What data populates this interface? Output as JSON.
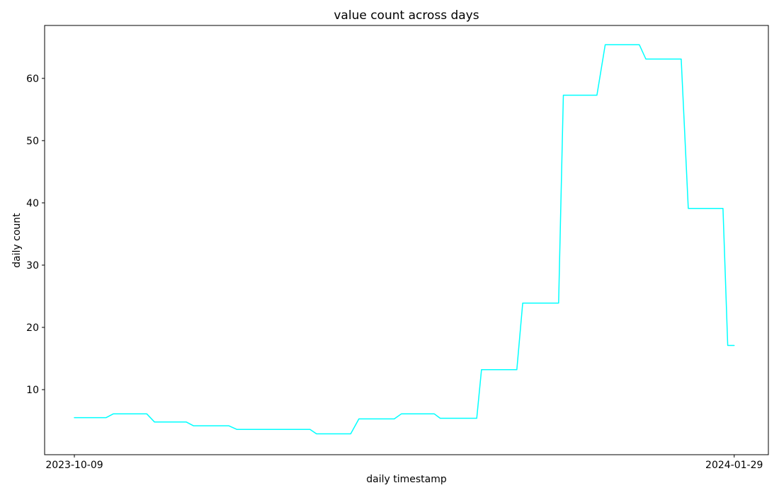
{
  "figure": {
    "title": "value count across days",
    "xlabel": "daily timestamp",
    "ylabel": "daily count",
    "background_color": "#ffffff",
    "text_color": "#000000",
    "spine_color": "#000000"
  },
  "chart_data": {
    "type": "line",
    "title": "value count across days",
    "xlabel": "daily timestamp",
    "ylabel": "daily count",
    "line_color": "#00ffff",
    "line_width": 1.5,
    "grid": false,
    "legend": null,
    "x_unit": "days since 2023-10-09",
    "x_start_date": "2023-10-09",
    "x_end_date": "2024-01-29",
    "xlim": [
      -5.05,
      117.8
    ],
    "ylim": [
      -0.45,
      68.5
    ],
    "x_ticks": [
      {
        "day": 0,
        "label": "2023-10-09"
      },
      {
        "day": 112,
        "label": "2024-01-29"
      }
    ],
    "y_ticks": [
      10,
      20,
      30,
      40,
      50,
      60
    ],
    "points": [
      [
        0,
        5.5
      ],
      [
        5.4,
        5.5
      ],
      [
        6.6,
        6.1
      ],
      [
        12.3,
        6.1
      ],
      [
        13.6,
        4.8
      ],
      [
        19.0,
        4.8
      ],
      [
        20.2,
        4.2
      ],
      [
        26.2,
        4.2
      ],
      [
        27.6,
        3.6
      ],
      [
        40.0,
        3.6
      ],
      [
        41.1,
        2.9
      ],
      [
        46.9,
        2.9
      ],
      [
        48.3,
        5.3
      ],
      [
        54.3,
        5.3
      ],
      [
        55.5,
        6.1
      ],
      [
        61.1,
        6.1
      ],
      [
        62.1,
        5.4
      ],
      [
        68.3,
        5.4
      ],
      [
        69.1,
        13.2
      ],
      [
        75.1,
        13.2
      ],
      [
        76.1,
        23.9
      ],
      [
        82.2,
        23.9
      ],
      [
        83.0,
        57.3
      ],
      [
        88.7,
        57.3
      ],
      [
        90.1,
        65.4
      ],
      [
        95.9,
        65.4
      ],
      [
        97.0,
        63.1
      ],
      [
        103.0,
        63.1
      ],
      [
        104.2,
        39.1
      ],
      [
        110.1,
        39.1
      ],
      [
        110.9,
        17.1
      ],
      [
        112.0,
        17.1
      ]
    ]
  }
}
